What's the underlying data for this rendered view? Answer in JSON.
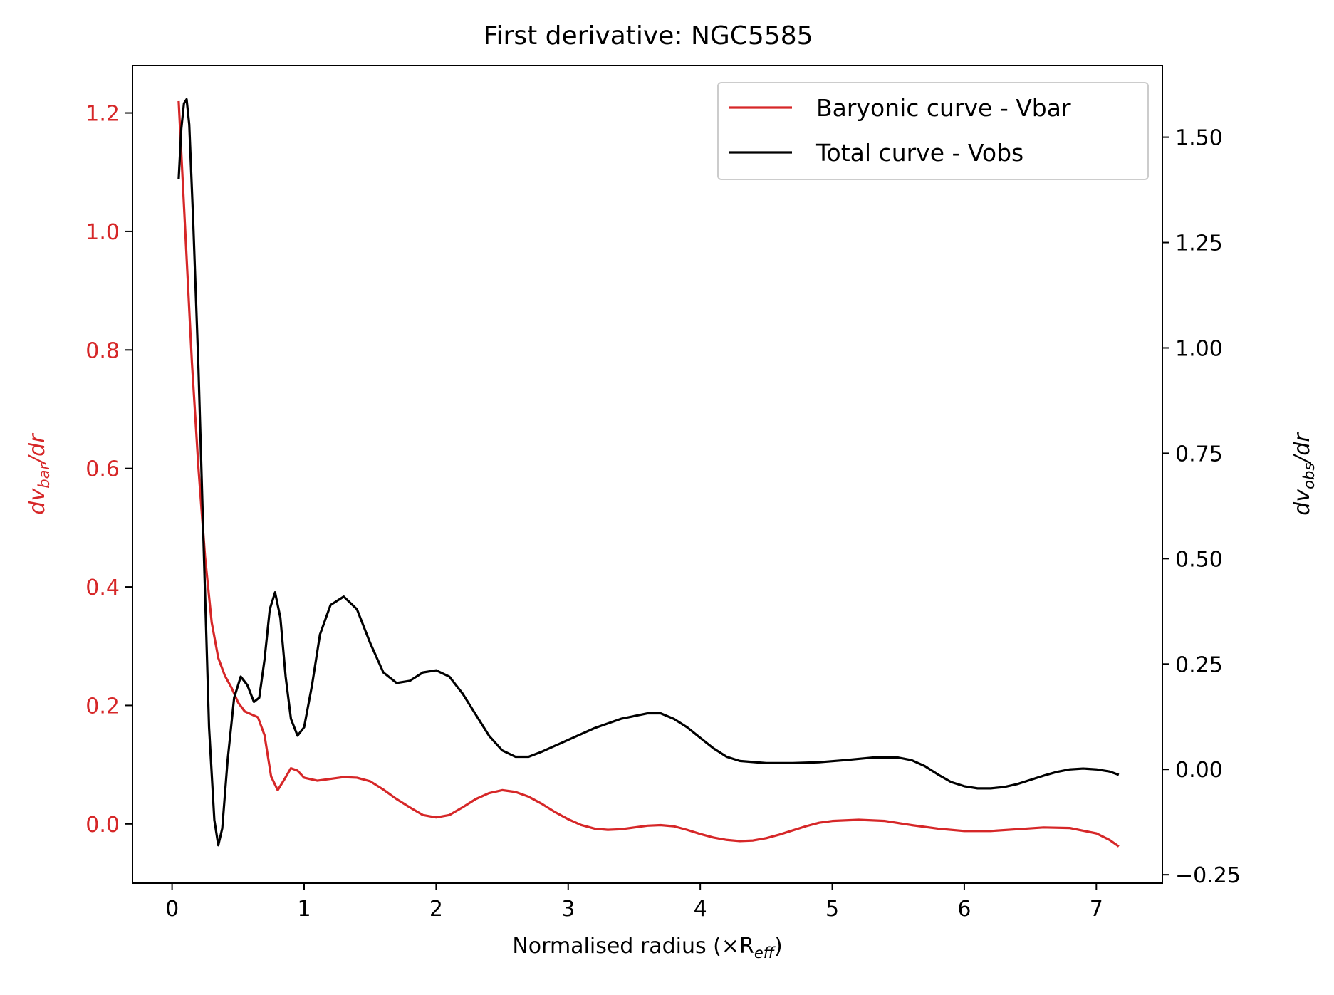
{
  "chart_data": {
    "type": "line",
    "title": "First derivative: NGC5585",
    "xlabel": "Normalised radius (×R",
    "xlabel_sub": "eff",
    "xlabel_close": ")",
    "ylabel_left": "dv",
    "ylabel_left_sub": "bar",
    "ylabel_left_tail": "/dr",
    "ylabel_right": "dv",
    "ylabel_right_sub": "obs",
    "ylabel_right_tail": "/dr",
    "xlim": [
      -0.3,
      7.5
    ],
    "ylim_left": [
      -0.1,
      1.28
    ],
    "ylim_right": [
      -0.27,
      1.67
    ],
    "xticks": [
      0,
      1,
      2,
      3,
      4,
      5,
      6,
      7
    ],
    "yticks_left": [
      "0.0",
      "0.2",
      "0.4",
      "0.6",
      "0.8",
      "1.0",
      "1.2"
    ],
    "yticks_right": [
      "−0.25",
      "0.00",
      "0.25",
      "0.50",
      "0.75",
      "1.00",
      "1.25",
      "1.50"
    ],
    "legend_position": "top-right",
    "colors": {
      "bar": "#d62728",
      "obs": "#000000",
      "left_axis": "#d62728"
    },
    "series": [
      {
        "name": "Baryonic curve - Vbar",
        "axis": "left",
        "points": [
          [
            0.05,
            1.22
          ],
          [
            0.1,
            1.0
          ],
          [
            0.15,
            0.78
          ],
          [
            0.2,
            0.6
          ],
          [
            0.25,
            0.45
          ],
          [
            0.3,
            0.34
          ],
          [
            0.35,
            0.28
          ],
          [
            0.4,
            0.25
          ],
          [
            0.45,
            0.23
          ],
          [
            0.5,
            0.205
          ],
          [
            0.55,
            0.19
          ],
          [
            0.6,
            0.185
          ],
          [
            0.65,
            0.18
          ],
          [
            0.7,
            0.15
          ],
          [
            0.75,
            0.08
          ],
          [
            0.8,
            0.057
          ],
          [
            0.85,
            0.075
          ],
          [
            0.9,
            0.094
          ],
          [
            0.95,
            0.09
          ],
          [
            1.0,
            0.078
          ],
          [
            1.1,
            0.073
          ],
          [
            1.2,
            0.076
          ],
          [
            1.3,
            0.079
          ],
          [
            1.4,
            0.078
          ],
          [
            1.5,
            0.072
          ],
          [
            1.6,
            0.058
          ],
          [
            1.7,
            0.042
          ],
          [
            1.8,
            0.028
          ],
          [
            1.9,
            0.015
          ],
          [
            2.0,
            0.011
          ],
          [
            2.1,
            0.015
          ],
          [
            2.2,
            0.028
          ],
          [
            2.3,
            0.042
          ],
          [
            2.4,
            0.052
          ],
          [
            2.5,
            0.057
          ],
          [
            2.6,
            0.054
          ],
          [
            2.7,
            0.046
          ],
          [
            2.8,
            0.034
          ],
          [
            2.9,
            0.02
          ],
          [
            3.0,
            0.008
          ],
          [
            3.1,
            -0.002
          ],
          [
            3.2,
            -0.008
          ],
          [
            3.3,
            -0.01
          ],
          [
            3.4,
            -0.009
          ],
          [
            3.5,
            -0.006
          ],
          [
            3.6,
            -0.003
          ],
          [
            3.7,
            -0.002
          ],
          [
            3.8,
            -0.004
          ],
          [
            3.9,
            -0.01
          ],
          [
            4.0,
            -0.017
          ],
          [
            4.1,
            -0.023
          ],
          [
            4.2,
            -0.027
          ],
          [
            4.3,
            -0.029
          ],
          [
            4.4,
            -0.028
          ],
          [
            4.5,
            -0.024
          ],
          [
            4.6,
            -0.018
          ],
          [
            4.7,
            -0.011
          ],
          [
            4.8,
            -0.004
          ],
          [
            4.9,
            0.002
          ],
          [
            5.0,
            0.005
          ],
          [
            5.2,
            0.007
          ],
          [
            5.4,
            0.005
          ],
          [
            5.6,
            -0.002
          ],
          [
            5.8,
            -0.008
          ],
          [
            6.0,
            -0.012
          ],
          [
            6.2,
            -0.012
          ],
          [
            6.4,
            -0.009
          ],
          [
            6.6,
            -0.006
          ],
          [
            6.8,
            -0.007
          ],
          [
            7.0,
            -0.016
          ],
          [
            7.1,
            -0.027
          ],
          [
            7.17,
            -0.038
          ]
        ]
      },
      {
        "name": "Total curve - Vobs",
        "axis": "right",
        "points": [
          [
            0.05,
            1.4
          ],
          [
            0.07,
            1.52
          ],
          [
            0.09,
            1.58
          ],
          [
            0.11,
            1.59
          ],
          [
            0.13,
            1.53
          ],
          [
            0.16,
            1.3
          ],
          [
            0.2,
            0.95
          ],
          [
            0.24,
            0.52
          ],
          [
            0.28,
            0.1
          ],
          [
            0.32,
            -0.12
          ],
          [
            0.35,
            -0.18
          ],
          [
            0.38,
            -0.14
          ],
          [
            0.42,
            0.02
          ],
          [
            0.47,
            0.17
          ],
          [
            0.52,
            0.22
          ],
          [
            0.57,
            0.2
          ],
          [
            0.62,
            0.16
          ],
          [
            0.66,
            0.17
          ],
          [
            0.7,
            0.26
          ],
          [
            0.74,
            0.38
          ],
          [
            0.78,
            0.42
          ],
          [
            0.82,
            0.36
          ],
          [
            0.86,
            0.22
          ],
          [
            0.9,
            0.12
          ],
          [
            0.95,
            0.08
          ],
          [
            1.0,
            0.1
          ],
          [
            1.06,
            0.2
          ],
          [
            1.12,
            0.32
          ],
          [
            1.2,
            0.39
          ],
          [
            1.3,
            0.41
          ],
          [
            1.4,
            0.38
          ],
          [
            1.5,
            0.3
          ],
          [
            1.6,
            0.23
          ],
          [
            1.7,
            0.205
          ],
          [
            1.8,
            0.21
          ],
          [
            1.9,
            0.23
          ],
          [
            2.0,
            0.235
          ],
          [
            2.1,
            0.22
          ],
          [
            2.2,
            0.18
          ],
          [
            2.3,
            0.13
          ],
          [
            2.4,
            0.08
          ],
          [
            2.5,
            0.045
          ],
          [
            2.6,
            0.03
          ],
          [
            2.7,
            0.03
          ],
          [
            2.8,
            0.042
          ],
          [
            3.0,
            0.07
          ],
          [
            3.2,
            0.098
          ],
          [
            3.4,
            0.12
          ],
          [
            3.6,
            0.133
          ],
          [
            3.7,
            0.133
          ],
          [
            3.8,
            0.12
          ],
          [
            3.9,
            0.1
          ],
          [
            4.0,
            0.075
          ],
          [
            4.1,
            0.05
          ],
          [
            4.2,
            0.03
          ],
          [
            4.3,
            0.02
          ],
          [
            4.5,
            0.015
          ],
          [
            4.7,
            0.015
          ],
          [
            4.9,
            0.017
          ],
          [
            5.1,
            0.022
          ],
          [
            5.3,
            0.028
          ],
          [
            5.5,
            0.028
          ],
          [
            5.6,
            0.022
          ],
          [
            5.7,
            0.008
          ],
          [
            5.8,
            -0.012
          ],
          [
            5.9,
            -0.03
          ],
          [
            6.0,
            -0.04
          ],
          [
            6.1,
            -0.045
          ],
          [
            6.2,
            -0.045
          ],
          [
            6.3,
            -0.042
          ],
          [
            6.4,
            -0.035
          ],
          [
            6.5,
            -0.025
          ],
          [
            6.6,
            -0.015
          ],
          [
            6.7,
            -0.006
          ],
          [
            6.8,
            0.0
          ],
          [
            6.9,
            0.002
          ],
          [
            7.0,
            0.0
          ],
          [
            7.1,
            -0.005
          ],
          [
            7.17,
            -0.013
          ]
        ]
      }
    ]
  }
}
